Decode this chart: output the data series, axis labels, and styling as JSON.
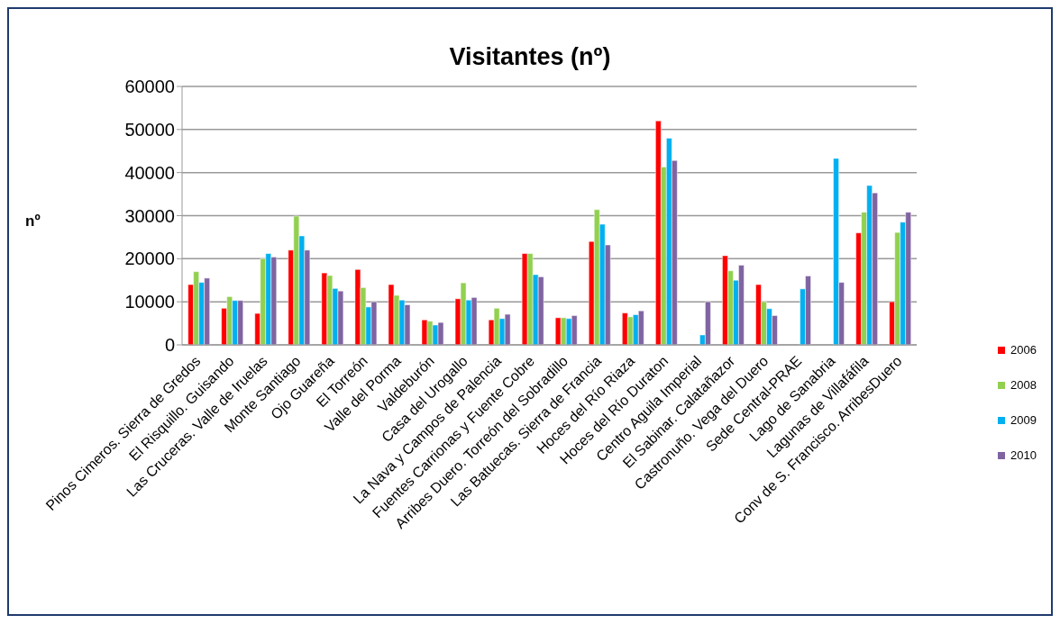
{
  "chart_data": {
    "type": "bar",
    "title": "Visitantes (nº)",
    "ylabel": "nº",
    "categories": [
      "Pinos Cimeros. Sierra de Gredos",
      "El Risquillo. Guisando",
      "Las Cruceras. Valle de Iruelas",
      "Monte Santiago",
      "Ojo Guareña",
      "El Torreón",
      "Valle del Porma",
      "Valdeburón",
      "Casa del Urogallo",
      "La Nava y Campos de Palencia",
      "Fuentes Carrionas y Fuente Cobre",
      "Arribes Duero. Torreón del Sobradillo",
      "Las Batuecas. Sierra de Francia",
      "Hoces del Río Riaza",
      "Hoces del Río Duraton",
      "Centro Aguila Imperial",
      "El Sabinar. Calatañazor",
      "Castronuño. Vega del Duero",
      "Sede Central-PRAE",
      "Lago de Sanabria",
      "Lagunas de Villafáfila",
      "Conv de S. Francisco. ArribesDuero"
    ],
    "series": [
      {
        "name": "2006",
        "color": "#ff0000",
        "values": [
          14000,
          8500,
          7300,
          22000,
          16700,
          17500,
          14000,
          5800,
          10700,
          5800,
          21200,
          6300,
          24000,
          7400,
          52000,
          null,
          20700,
          14000,
          null,
          null,
          26000,
          10000
        ]
      },
      {
        "name": "2008",
        "color": "#92d050",
        "values": [
          17000,
          11200,
          20000,
          29900,
          16100,
          13300,
          11500,
          5500,
          14400,
          8500,
          21200,
          6300,
          31400,
          6500,
          41300,
          null,
          17200,
          10000,
          null,
          null,
          30800,
          26100
        ]
      },
      {
        "name": "2009",
        "color": "#00b0f0",
        "values": [
          14500,
          10300,
          21200,
          25300,
          13100,
          8800,
          10400,
          4600,
          10400,
          6100,
          16300,
          6100,
          28000,
          7000,
          48000,
          2300,
          15000,
          8400,
          13000,
          43300,
          37000,
          28500
        ]
      },
      {
        "name": "2010",
        "color": "#8064a2",
        "values": [
          15500,
          10300,
          20400,
          22000,
          12500,
          10000,
          9300,
          5200,
          11000,
          7100,
          15800,
          6800,
          23200,
          7900,
          42800,
          10000,
          18500,
          6800,
          16000,
          14500,
          35300,
          30800
        ]
      }
    ],
    "ylim": [
      0,
      60000
    ],
    "yticks": [
      0,
      10000,
      20000,
      30000,
      40000,
      50000,
      60000
    ],
    "grid": "y",
    "legend": "right"
  }
}
